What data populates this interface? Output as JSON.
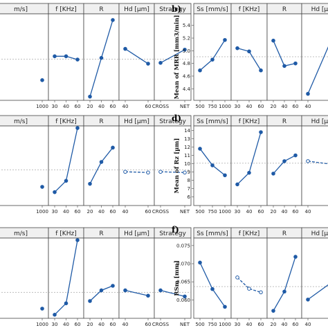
{
  "colors": {
    "line": "#1f5aa6",
    "panel_border": "#444444",
    "header_bg": "#f0f0f0",
    "mean_line": "#aaaaaa"
  },
  "chart_data": [
    {
      "type": "line",
      "panel_label": "",
      "ylabel": "",
      "ylim": [
        0,
        1
      ],
      "yticks": [],
      "partial_left": true,
      "factors": [
        {
          "name": "m/s]",
          "levels": [
            "1000"
          ],
          "values": [
            0.22
          ]
        },
        {
          "name": "f [KHz]",
          "levels": [
            "30",
            "40",
            "60"
          ],
          "values": [
            0.51,
            0.51,
            0.47
          ]
        },
        {
          "name": "R",
          "levels": [
            "20",
            "40",
            "60"
          ],
          "values": [
            0.02,
            0.49,
            0.95
          ]
        },
        {
          "name": "Hd [µm]",
          "levels": [
            "40",
            "60"
          ],
          "values": [
            0.6,
            0.42
          ]
        },
        {
          "name": "Strategy",
          "levels": [
            "CROSS",
            "NET"
          ],
          "values": [
            0.43,
            0.59
          ]
        }
      ]
    },
    {
      "type": "line",
      "panel_label": "b)",
      "ylabel": "Mean of MRR [mm3/min]",
      "ylim": [
        4.25,
        5.55
      ],
      "yticks": [
        "4.4",
        "4.6",
        "4.8",
        "5.0",
        "5.2",
        "5.4"
      ],
      "partial_right": true,
      "factors": [
        {
          "name": "Ss [mm/s]",
          "levels": [
            "500",
            "750",
            "1000"
          ],
          "values": [
            4.69,
            4.86,
            5.17
          ]
        },
        {
          "name": "f [KHz]",
          "levels": [
            "30",
            "40",
            "60"
          ],
          "values": [
            5.04,
            4.99,
            4.69
          ]
        },
        {
          "name": "R",
          "levels": [
            "20",
            "40",
            "60"
          ],
          "values": [
            5.16,
            4.76,
            4.8
          ]
        },
        {
          "name": "Hd [µm]",
          "levels": [
            "40",
            "6"
          ],
          "values": [
            4.32,
            5.48
          ]
        }
      ]
    },
    {
      "type": "line",
      "panel_label": "",
      "ylabel": "",
      "ylim": [
        0,
        1
      ],
      "yticks": [],
      "partial_left": true,
      "factors": [
        {
          "name": "m/s]",
          "levels": [
            "1000"
          ],
          "values": [
            0.22
          ]
        },
        {
          "name": "f [KHz]",
          "levels": [
            "30",
            "40",
            "60"
          ],
          "values": [
            0.15,
            0.3,
            1.0
          ]
        },
        {
          "name": "R",
          "levels": [
            "20",
            "40",
            "60"
          ],
          "values": [
            0.26,
            0.55,
            0.74
          ]
        },
        {
          "name": "Hd [µm]",
          "levels": [
            "40",
            "60"
          ],
          "values": [
            0.42,
            0.41
          ],
          "dashed": true
        },
        {
          "name": "Strategy",
          "levels": [
            "CROSS",
            "NET"
          ],
          "values": [
            0.42,
            0.41
          ],
          "dashed": true
        }
      ]
    },
    {
      "type": "line",
      "panel_label": "d)",
      "ylabel": "Mean of Rz [µm]",
      "ylim": [
        5.2,
        14.3
      ],
      "yticks": [
        "6",
        "7",
        "8",
        "9",
        "10",
        "11",
        "12",
        "13",
        "14"
      ],
      "partial_right": true,
      "factors": [
        {
          "name": "Ss [mm/s]",
          "levels": [
            "500",
            "750",
            "1000"
          ],
          "values": [
            11.8,
            9.8,
            8.6
          ]
        },
        {
          "name": "f [KHz]",
          "levels": [
            "30",
            "40",
            "60"
          ],
          "values": [
            7.5,
            8.9,
            13.8
          ]
        },
        {
          "name": "R",
          "levels": [
            "20",
            "40",
            "60"
          ],
          "values": [
            8.8,
            10.3,
            11.0
          ]
        },
        {
          "name": "Hd [µm]",
          "levels": [
            "40",
            "6"
          ],
          "values": [
            10.3,
            9.8
          ],
          "dashed": true
        }
      ]
    },
    {
      "type": "line",
      "panel_label": "",
      "ylabel": "",
      "ylim": [
        0,
        1
      ],
      "yticks": [],
      "partial_left": true,
      "factors": [
        {
          "name": "m/s]",
          "levels": [
            "1000"
          ],
          "values": [
            0.1
          ]
        },
        {
          "name": "f [KHz]",
          "levels": [
            "30",
            "40",
            "60"
          ],
          "values": [
            0.02,
            0.17,
            1.0
          ]
        },
        {
          "name": "R",
          "levels": [
            "20",
            "40",
            "60"
          ],
          "values": [
            0.2,
            0.34,
            0.4
          ]
        },
        {
          "name": "Hd [µm]",
          "levels": [
            "40",
            "60"
          ],
          "values": [
            0.34,
            0.27
          ]
        },
        {
          "name": "Strategy",
          "levels": [
            "CROSS",
            "NET"
          ],
          "values": [
            0.34,
            0.26
          ]
        }
      ]
    },
    {
      "type": "line",
      "panel_label": "f)",
      "ylabel": "RSm [mm]",
      "ylim": [
        0.0555,
        0.0765
      ],
      "yticks": [
        "0.060",
        "0.065",
        "0.070",
        "0.075"
      ],
      "partial_right": true,
      "factors": [
        {
          "name": "Ss [mm/s]",
          "levels": [
            "500",
            "750",
            "1000"
          ],
          "values": [
            0.0703,
            0.063,
            0.0581
          ]
        },
        {
          "name": "f [KHz]",
          "levels": [
            "30",
            "40",
            "60"
          ],
          "values": [
            0.0662,
            0.0631,
            0.0621
          ],
          "dashed": true
        },
        {
          "name": "R",
          "levels": [
            "20",
            "40",
            "60"
          ],
          "values": [
            0.057,
            0.0623,
            0.0719
          ]
        },
        {
          "name": "Hd [µm]",
          "levels": [
            "40",
            "6"
          ],
          "values": [
            0.0601,
            0.0665
          ]
        }
      ]
    }
  ]
}
